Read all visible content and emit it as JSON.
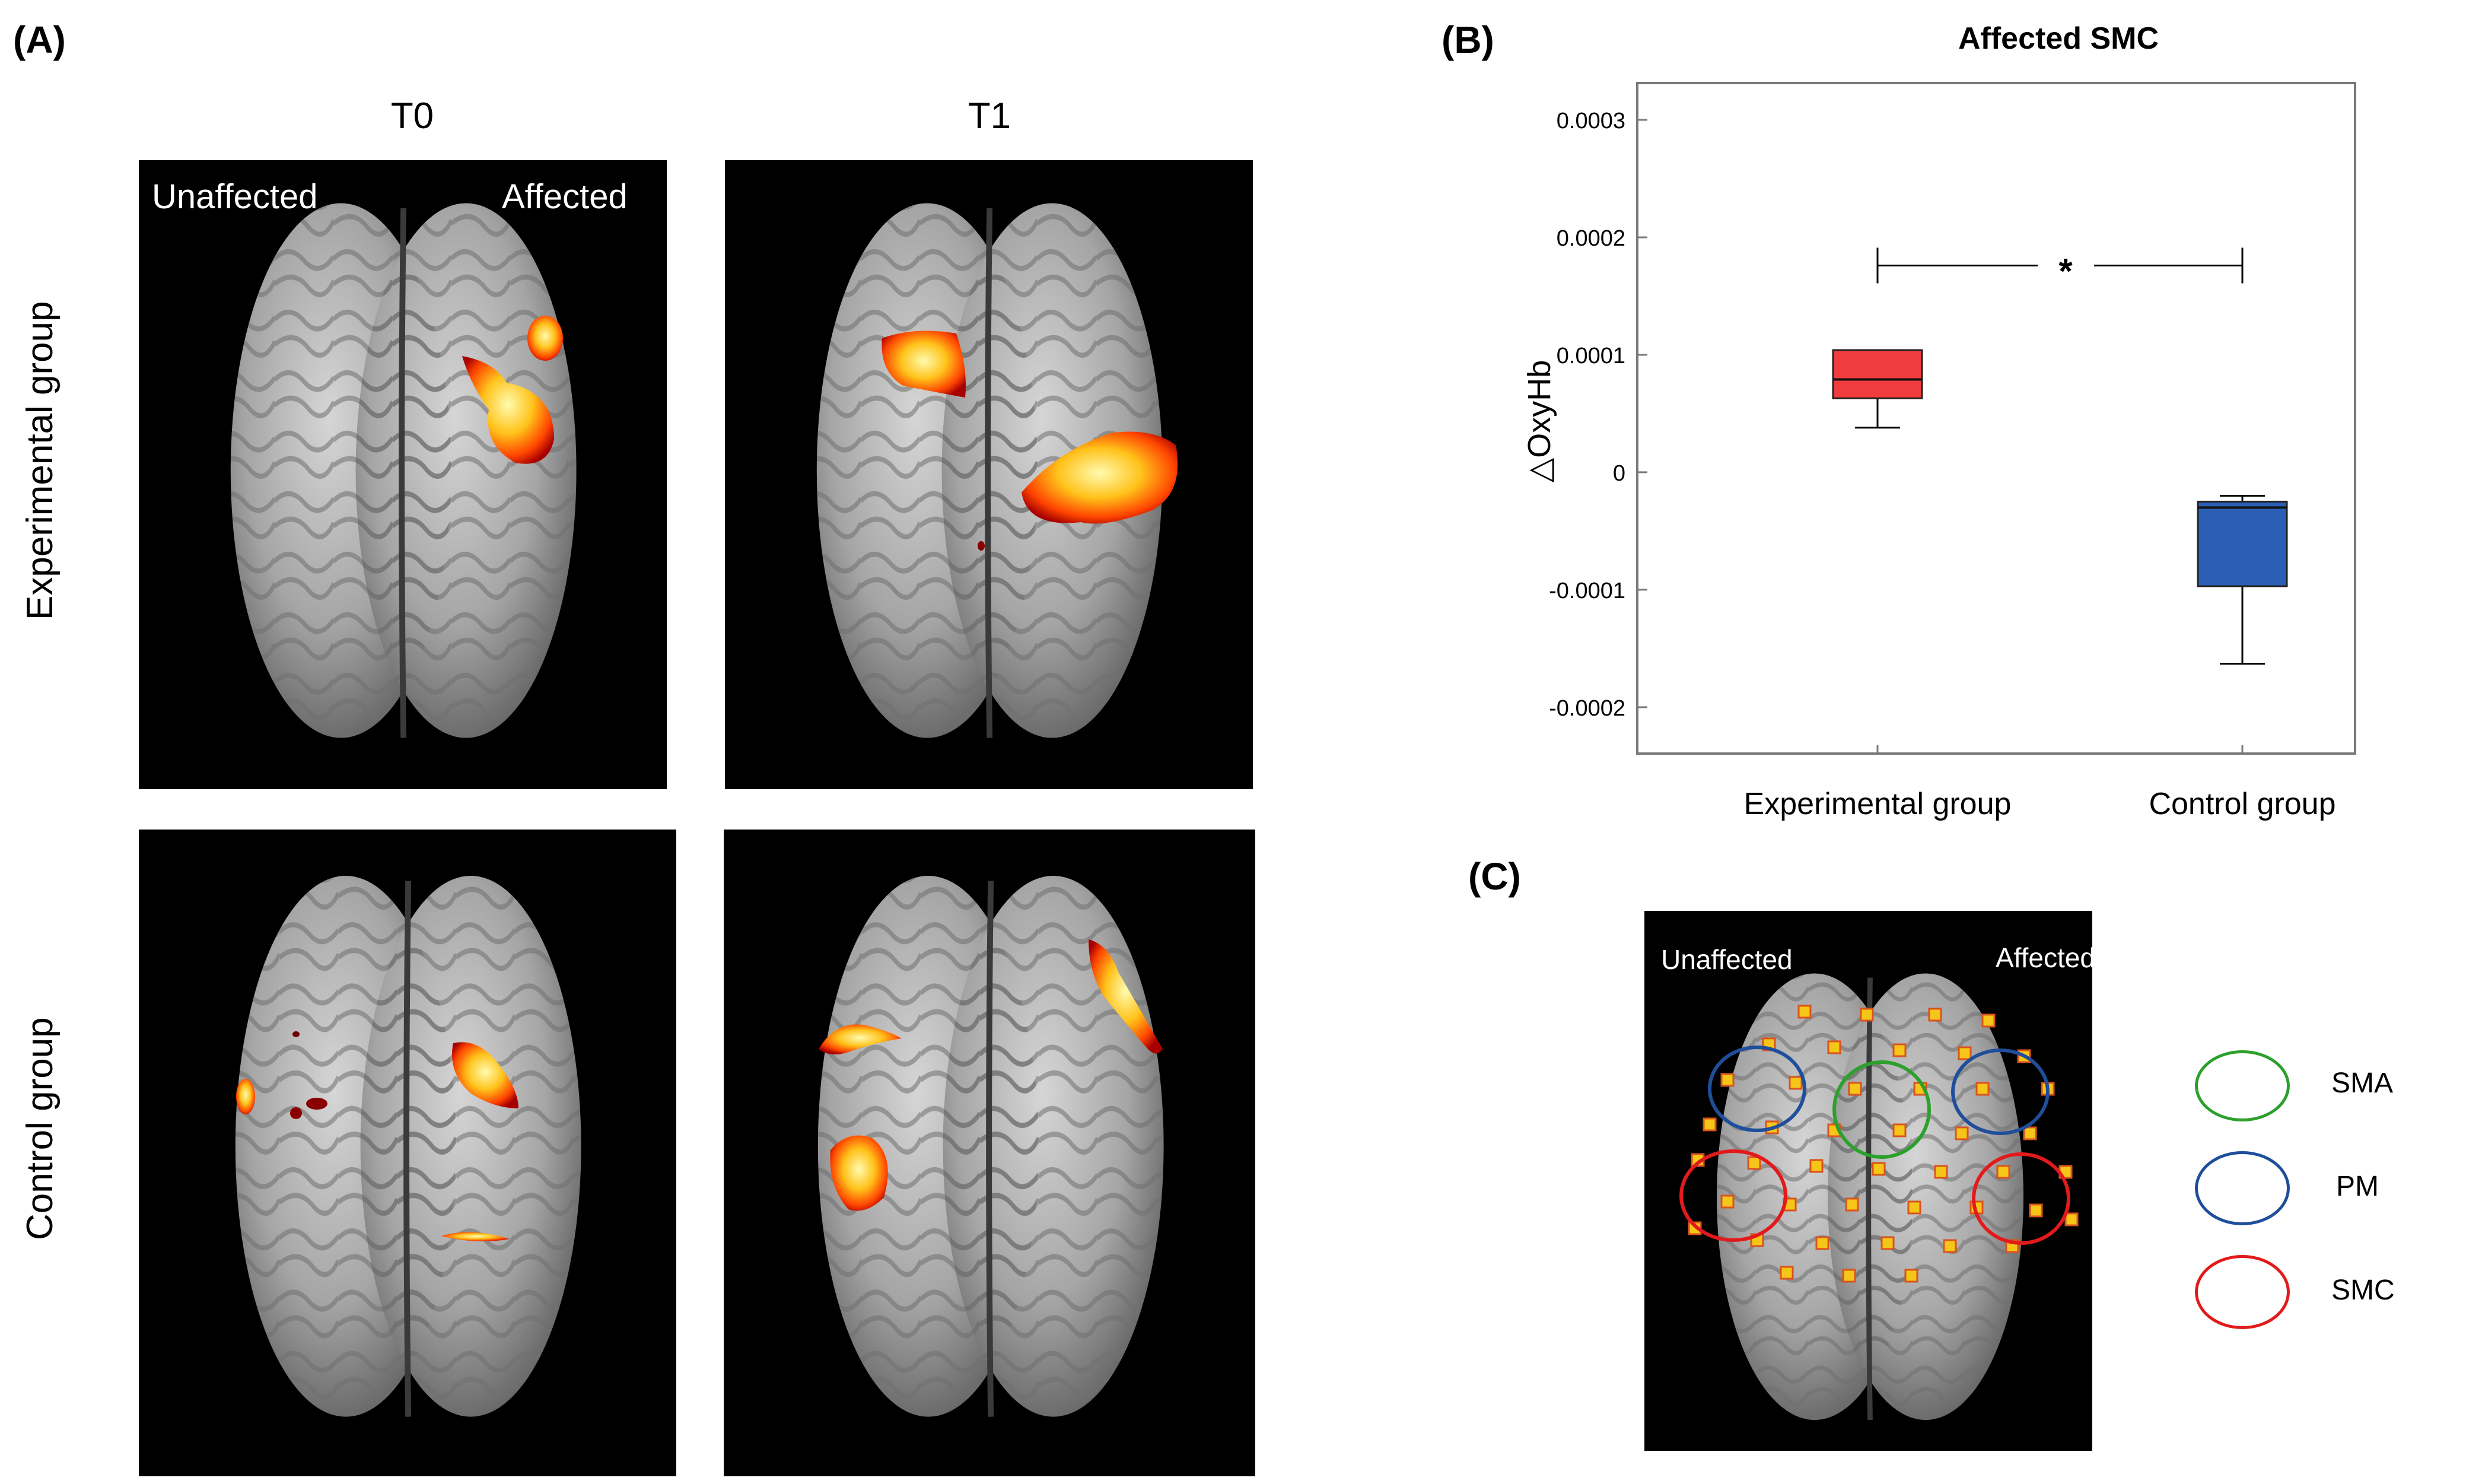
{
  "panel_a": {
    "letter": "(A)",
    "col_headers": [
      "T0",
      "T1"
    ],
    "row_headers": [
      "Experimental group",
      "Control group"
    ],
    "hemisphere_left": "Unaffected",
    "hemisphere_right": "Affected"
  },
  "panel_b": {
    "letter": "(B)",
    "significance": "*"
  },
  "panel_c": {
    "letter": "(C)",
    "hemisphere_left": "Unaffected",
    "hemisphere_right": "Affected",
    "legend": [
      {
        "label": "SMA",
        "color": "#2ca02c"
      },
      {
        "label": "PM",
        "color": "#1f4e9a"
      },
      {
        "label": "SMC",
        "color": "#e31a1c"
      }
    ]
  },
  "chart_data": {
    "type": "box",
    "title": "Affected SMC",
    "xlabel": "",
    "ylabel": "△OxyHb",
    "ylim": [
      -0.0002,
      0.0003
    ],
    "yticks": [
      "0.0003",
      "0.0002",
      "0.0001",
      "0",
      "-0.0001",
      "-0.0002"
    ],
    "ytick_values": [
      0.0003,
      0.0002,
      0.0001,
      0,
      -0.0001,
      -0.0002
    ],
    "categories": [
      "Experimental group",
      "Control group"
    ],
    "boxes": [
      {
        "category": "Experimental group",
        "min": 3.8e-05,
        "q1": 6.3e-05,
        "median": 7.9e-05,
        "q3": 0.000104,
        "max": 0.000104,
        "color": "#f03c3c"
      },
      {
        "category": "Control group",
        "min": -0.000163,
        "q1": -9.7e-05,
        "median": -3e-05,
        "q3": -2.5e-05,
        "max": -2e-05,
        "color": "#2a5fb5"
      }
    ],
    "significance_bracket": {
      "label": "*",
      "y": 0.000176
    }
  }
}
